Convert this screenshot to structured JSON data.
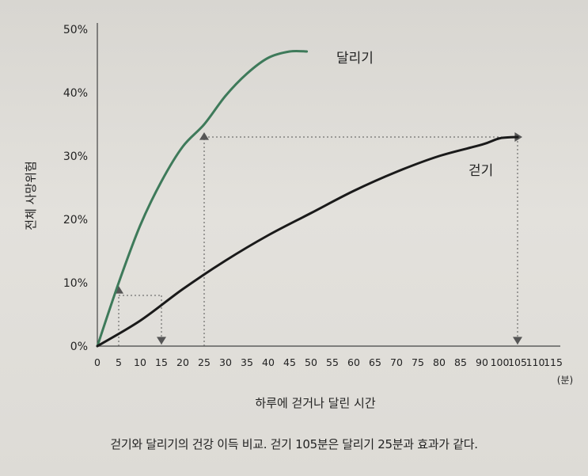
{
  "chart_data": {
    "type": "line",
    "title": "",
    "xlabel": "하루에 걷거나 달린 시간",
    "ylabel": "전체 사망위험",
    "x_unit_label": "(분)",
    "xlim": [
      0,
      115
    ],
    "ylim": [
      0,
      50
    ],
    "x_ticks": [
      "0",
      "5",
      "10",
      "15",
      "20",
      "25",
      "30",
      "35",
      "40",
      "45",
      "50",
      "55",
      "60",
      "65",
      "70",
      "75",
      "80",
      "85",
      "90",
      "100",
      "105",
      "110",
      "115"
    ],
    "y_ticks": [
      "0%",
      "10%",
      "20%",
      "30%",
      "40%",
      "50%"
    ],
    "series": [
      {
        "name": "달리기",
        "color": "#3e7a5a",
        "x": [
          0,
          5,
          10,
          15,
          20,
          25,
          30,
          35,
          40,
          45,
          49
        ],
        "y": [
          0,
          10,
          19,
          26,
          31.5,
          35,
          39.5,
          43,
          45.5,
          46.5,
          46.5
        ]
      },
      {
        "name": "걷기",
        "color": "#1a1a1a",
        "x": [
          0,
          10,
          20,
          30,
          40,
          50,
          60,
          70,
          80,
          90,
          100,
          105
        ],
        "y": [
          0,
          4,
          9,
          13.5,
          17.5,
          21,
          24.5,
          27.5,
          30,
          31.8,
          32.8,
          33
        ]
      }
    ],
    "annotations": [
      {
        "type": "arrow-pair",
        "from": [
          5,
          8
        ],
        "to": [
          15,
          8
        ]
      },
      {
        "type": "arrow-pair",
        "from": [
          25,
          33
        ],
        "to": [
          105,
          33
        ]
      }
    ],
    "grid": false
  },
  "caption": "걷기와 달리기의 건강 이득 비교. 걷기 105분은 달리기 25분과 효과가 같다."
}
